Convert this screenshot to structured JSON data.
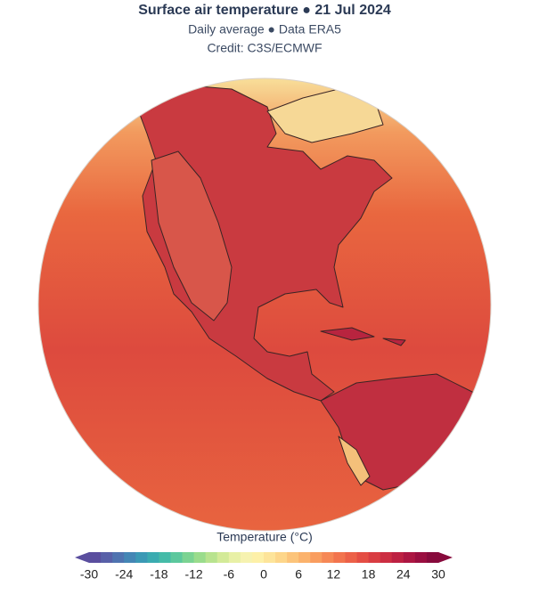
{
  "header": {
    "title": "Surface air temperature ● 21 Jul 2024",
    "subtitle": "Daily average ● Data ERA5",
    "credit": "Credit: C3S/ECMWF"
  },
  "colorbar": {
    "label": "Temperature (°C)",
    "range": [
      -30,
      30
    ],
    "ticks": [
      -30,
      -24,
      -18,
      -12,
      -6,
      0,
      6,
      12,
      18,
      24,
      30
    ],
    "colors": [
      "#5a4e9e",
      "#5860a8",
      "#4f73b0",
      "#4486b5",
      "#3b99b5",
      "#3aabb0",
      "#45bba8",
      "#5cc89d",
      "#7bd392",
      "#9adc8c",
      "#b8e38f",
      "#d3ea98",
      "#e8f0a6",
      "#f6f2b0",
      "#fdf0a8",
      "#fde49a",
      "#fdd68a",
      "#fcc47a",
      "#fbb26c",
      "#f99d5f",
      "#f68856",
      "#f2744e",
      "#ec6148",
      "#e44e44",
      "#d93d42",
      "#cc2e42",
      "#bd2142",
      "#ac1642",
      "#9a0e40",
      "#870a3c"
    ]
  }
}
